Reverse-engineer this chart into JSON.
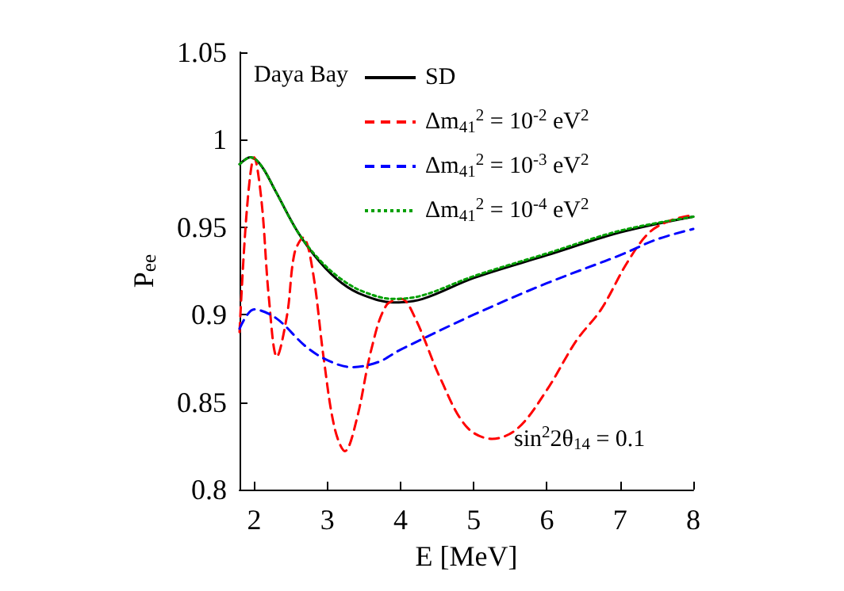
{
  "chart_data": {
    "type": "line",
    "xlabel": "E [MeV]",
    "ylabel": "P$_{ee}$",
    "xlim": [
      1.8,
      8
    ],
    "xticks": [
      2,
      3,
      4,
      5,
      6,
      7,
      8
    ],
    "ylim": [
      0.8,
      1.05
    ],
    "yticks": [
      0.8,
      0.85,
      0.9,
      0.95,
      1,
      1.05
    ],
    "grid": false,
    "legend": "top right",
    "marker": "none",
    "annotations": [
      "Daya Bay",
      "sin$^{2}$2θ$_{14}$ = 0.1"
    ],
    "series": [
      {
        "name": "SD",
        "color": "#000000",
        "line_style": "solid",
        "x": [
          1.8,
          1.95,
          2.1,
          2.3,
          2.6,
          2.9,
          3.2,
          3.5,
          3.9,
          4.3,
          5,
          6,
          7,
          8
        ],
        "values": [
          0.986,
          0.99,
          0.985,
          0.97,
          0.947,
          0.93,
          0.918,
          0.911,
          0.907,
          0.909,
          0.921,
          0.934,
          0.947,
          0.956
        ]
      },
      {
        "name": "Δm$_{41}$$^{2}$ = 10$^{-2}$ eV$^{2}$",
        "color": "#ff0000",
        "line_style": "dashed",
        "x": [
          1.8,
          1.9,
          2.0,
          2.1,
          2.2,
          2.31,
          2.45,
          2.55,
          2.67,
          2.8,
          2.95,
          3.1,
          3.24,
          3.4,
          3.6,
          3.8,
          4.01,
          4.2,
          4.55,
          4.9,
          5.25,
          5.6,
          6.0,
          6.4,
          6.74,
          7.1,
          7.4,
          7.7,
          8
        ],
        "values": [
          0.89,
          0.96,
          0.99,
          0.965,
          0.91,
          0.876,
          0.9,
          0.935,
          0.944,
          0.925,
          0.875,
          0.835,
          0.822,
          0.84,
          0.88,
          0.905,
          0.909,
          0.898,
          0.863,
          0.836,
          0.829,
          0.835,
          0.857,
          0.885,
          0.903,
          0.93,
          0.947,
          0.954,
          0.957
        ]
      },
      {
        "name": "Δm$_{41}$$^{2}$ = 10$^{-3}$ eV$^{2}$",
        "color": "#0000ff",
        "line_style": "dashed",
        "x": [
          1.8,
          2.0,
          2.3,
          2.7,
          3.0,
          3.33,
          3.7,
          4.0,
          5,
          6,
          7,
          7.5,
          8
        ],
        "values": [
          0.892,
          0.903,
          0.898,
          0.882,
          0.874,
          0.87,
          0.873,
          0.88,
          0.9,
          0.918,
          0.934,
          0.943,
          0.949
        ]
      },
      {
        "name": "Δm$_{41}$$^{2}$ = 10$^{-4}$ eV$^{2}$",
        "color": "#00a000",
        "line_style": "dotted",
        "x": [
          1.8,
          1.95,
          2.1,
          2.3,
          2.6,
          2.9,
          3.2,
          3.5,
          3.9,
          4.3,
          5,
          6,
          7,
          8
        ],
        "values": [
          0.986,
          0.99,
          0.985,
          0.97,
          0.947,
          0.931,
          0.92,
          0.913,
          0.909,
          0.911,
          0.922,
          0.935,
          0.948,
          0.956
        ]
      }
    ]
  }
}
